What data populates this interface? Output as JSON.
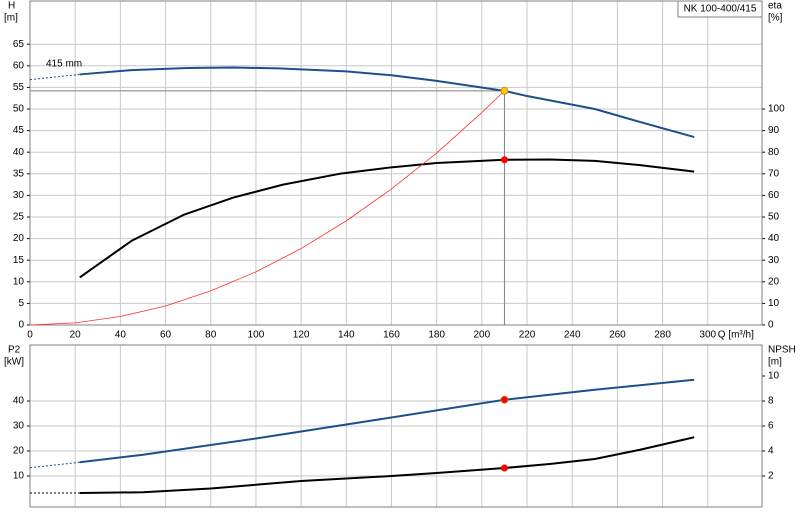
{
  "chart_data": [
    {
      "type": "line",
      "title": "NK 100-400/415",
      "ylabel": "H",
      "yunit": "[m]",
      "y2label": "eta",
      "y2unit": "[%]",
      "xlabel": "Q [m³/h]",
      "annotation": "415 mm",
      "xlim": [
        0,
        324
      ],
      "xticks": [
        0,
        20,
        40,
        60,
        80,
        100,
        120,
        140,
        160,
        180,
        200,
        220,
        240,
        260,
        280,
        300
      ],
      "ylim": [
        0,
        75
      ],
      "yticks": [
        0,
        5,
        10,
        15,
        20,
        25,
        30,
        35,
        40,
        45,
        50,
        55,
        60,
        65
      ],
      "y2lim": [
        0,
        150
      ],
      "y2ticks": [
        0,
        10,
        20,
        30,
        40,
        50,
        60,
        70,
        80,
        90,
        100
      ],
      "grid": true,
      "series": [
        {
          "color": "#1f4e8c",
          "dashed": true,
          "width": 1,
          "x": [
            0,
            22
          ],
          "values": [
            56.8,
            58
          ]
        },
        {
          "color": "#1f4e8c",
          "width": 2,
          "x": [
            22,
            45,
            70,
            90,
            110,
            140,
            160,
            180,
            210,
            220,
            250,
            270,
            294
          ],
          "values": [
            58,
            59,
            59.5,
            59.6,
            59.4,
            58.7,
            57.8,
            56.5,
            54.2,
            53,
            50,
            47,
            43.5
          ]
        },
        {
          "color": "#000000",
          "width": 2,
          "axis": "y2",
          "x": [
            22,
            45,
            68,
            90,
            112,
            137,
            160,
            180,
            210,
            230,
            250,
            270,
            294
          ],
          "values": [
            22,
            39,
            51,
            59,
            65,
            70,
            73,
            75,
            76.5,
            76.6,
            76,
            74,
            71
          ]
        },
        {
          "color": "#ff3030",
          "width": 0.8,
          "x": [
            0,
            20,
            40,
            60,
            80,
            100,
            120,
            140,
            160,
            180,
            200,
            210
          ],
          "values": [
            0,
            0.49,
            1.97,
            4.4,
            7.9,
            12.3,
            17.7,
            24.1,
            31.5,
            39.8,
            49.2,
            54.2
          ]
        }
      ],
      "reference_lines": {
        "color": "#808080",
        "x": 210,
        "y": 54.2
      },
      "markers": [
        {
          "x": 210,
          "y": 54.2,
          "color": "#ffcc00"
        },
        {
          "x": 210,
          "y": 76.5,
          "color": "#ff0000",
          "axis": "y2"
        }
      ]
    },
    {
      "type": "line",
      "ylabel": "P2",
      "yunit": "[kW]",
      "y2label": "NPSH",
      "y2unit": "[m]",
      "xlim": [
        0,
        324
      ],
      "xticks": [
        0,
        20,
        40,
        60,
        80,
        100,
        120,
        140,
        160,
        180,
        200,
        220,
        240,
        260,
        280,
        300
      ],
      "ylim": [
        -2.4,
        62.4
      ],
      "yticks": [
        10,
        20,
        30,
        40
      ],
      "y2lim": [
        -0.48,
        12.48
      ],
      "y2ticks": [
        2,
        4,
        6,
        8,
        10
      ],
      "grid": true,
      "series": [
        {
          "color": "#1f4e8c",
          "dashed": true,
          "width": 1,
          "x": [
            0,
            22
          ],
          "values": [
            13.3,
            15.5
          ]
        },
        {
          "color": "#1f4e8c",
          "width": 2,
          "x": [
            22,
            50,
            100,
            150,
            210,
            250,
            294
          ],
          "values": [
            15.5,
            18.5,
            25,
            32,
            40.5,
            44.5,
            48.5
          ]
        },
        {
          "color": "#000000",
          "dashed": true,
          "width": 1,
          "axis": "y2",
          "x": [
            0,
            22
          ],
          "values": [
            0.64,
            0.64
          ]
        },
        {
          "color": "#000000",
          "width": 2,
          "axis": "y2",
          "x": [
            22,
            50,
            80,
            120,
            160,
            180,
            210,
            230,
            250,
            270,
            294
          ],
          "values": [
            0.64,
            0.7,
            1.0,
            1.6,
            2.0,
            2.24,
            2.64,
            2.96,
            3.36,
            4.1,
            5.1
          ]
        }
      ],
      "markers": [
        {
          "x": 210,
          "y": 40.5,
          "color": "#ff0000"
        },
        {
          "x": 210,
          "y": 2.64,
          "color": "#ff0000",
          "axis": "y2"
        }
      ]
    }
  ]
}
